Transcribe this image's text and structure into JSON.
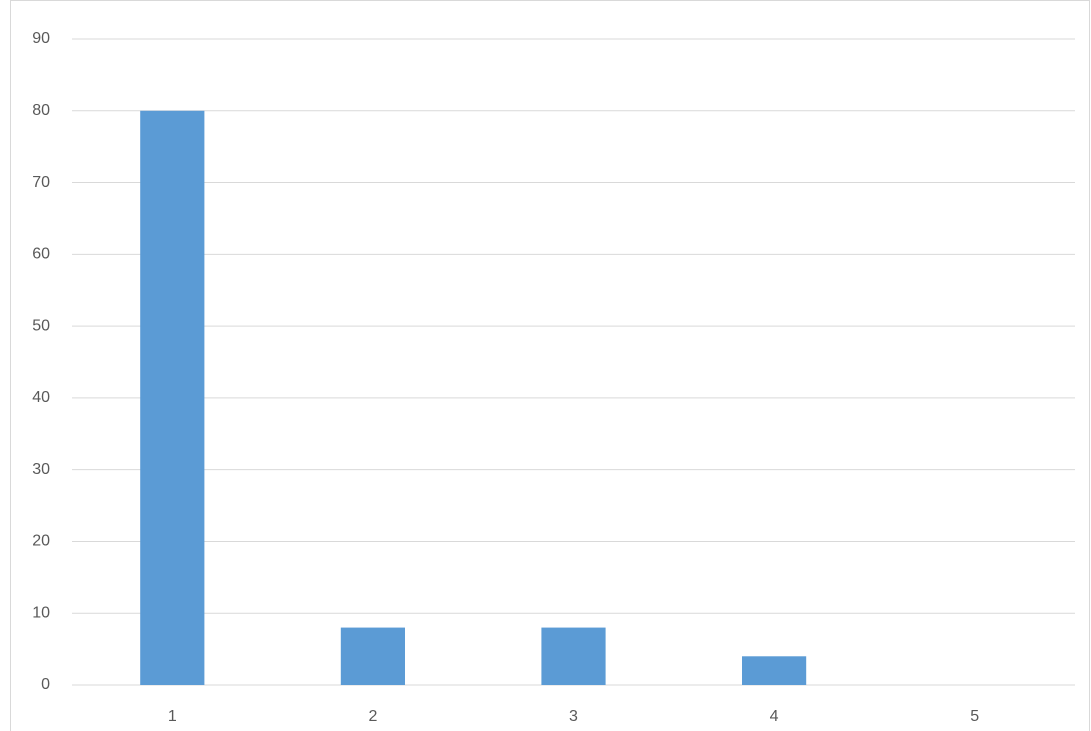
{
  "chart_data": {
    "type": "bar",
    "categories": [
      "1",
      "2",
      "3",
      "4",
      "5"
    ],
    "values": [
      80,
      8,
      8,
      4,
      0
    ],
    "color": "#5b9bd5",
    "ylim": [
      0,
      90
    ],
    "yticks": [
      0,
      10,
      20,
      30,
      40,
      50,
      60,
      70,
      80,
      90
    ],
    "grid": true
  }
}
